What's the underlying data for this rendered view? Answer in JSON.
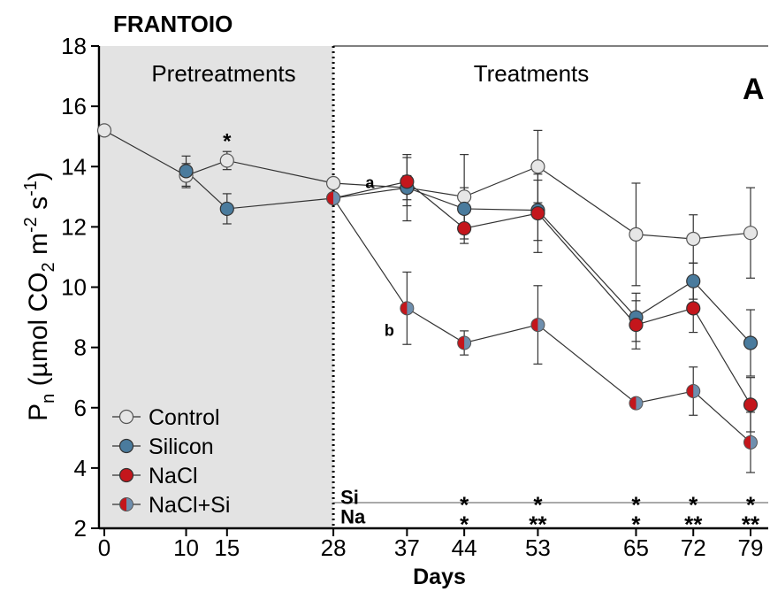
{
  "chart_data": {
    "type": "line",
    "title": "FRANTOIO",
    "panel_letter": "A",
    "xlabel": "Days",
    "ylabel": {
      "main": "P",
      "sub_n": "n",
      "units_prefix": " (µmol CO",
      "sub_2": "2",
      "units_mid": " m",
      "sup_m2": "-2",
      "units_s": " s",
      "sup_m1": "-1",
      "units_end": ")"
    },
    "x_ticks": [
      0,
      10,
      15,
      28,
      37,
      44,
      53,
      65,
      72,
      79
    ],
    "y_ticks": [
      2,
      4,
      6,
      8,
      10,
      12,
      14,
      16,
      18
    ],
    "xlim": [
      0,
      81
    ],
    "ylim": [
      2,
      18
    ],
    "grid": false,
    "legend_position": "bottom-left",
    "regions": {
      "pretreatment_label": "Pretreatments",
      "treatment_label": "Treatments",
      "boundary_day": 28
    },
    "colors": {
      "control": "#e6e6e6",
      "silicon": "#4a7b9d",
      "nacl": "#c4161c",
      "nacl_si_left": "#c4161c",
      "nacl_si_right": "#6f8fae",
      "shade": "#e3e3e3",
      "si_label": "#4a7b9d",
      "na_label": "#c4161c"
    },
    "series": [
      {
        "name": "Control",
        "key": "control",
        "x": [
          0,
          10,
          15,
          28,
          37,
          44,
          53,
          65,
          72,
          79
        ],
        "y": [
          15.2,
          13.7,
          14.2,
          13.45,
          13.3,
          13.0,
          14.0,
          11.75,
          11.6,
          11.8
        ],
        "err": [
          0,
          0.4,
          0.3,
          0,
          1.1,
          1.4,
          1.2,
          1.7,
          0.8,
          1.5
        ]
      },
      {
        "name": "Silicon",
        "key": "silicon",
        "x": [
          10,
          15,
          28,
          37,
          44,
          53,
          65,
          72,
          79
        ],
        "y": [
          13.85,
          12.6,
          12.95,
          13.3,
          12.6,
          12.55,
          9.0,
          10.2,
          8.15
        ],
        "err": [
          0.5,
          0.5,
          0,
          0.4,
          0.7,
          1.0,
          0.8,
          0.6,
          1.1
        ]
      },
      {
        "name": "NaCl",
        "key": "nacl",
        "x": [
          37,
          44,
          53,
          65,
          72,
          79
        ],
        "y": [
          13.5,
          11.95,
          12.45,
          8.75,
          9.3,
          6.1
        ],
        "err": [
          0.8,
          0.5,
          1.3,
          0.8,
          0.8,
          0.9
        ]
      },
      {
        "name": "NaCl+Si",
        "key": "nacl_si",
        "x": [
          28,
          37,
          44,
          53,
          65,
          72,
          79
        ],
        "y": [
          12.95,
          9.3,
          8.15,
          8.75,
          6.15,
          6.55,
          4.85
        ],
        "err": [
          0,
          1.2,
          0.4,
          1.3,
          0.1,
          0.8,
          1.0
        ]
      }
    ],
    "annotations": {
      "star_day15": "*",
      "label_a": "a",
      "label_b": "b"
    },
    "significance_rows": [
      {
        "label": "Si",
        "marks": [
          {
            "x": 44,
            "text": "*"
          },
          {
            "x": 53,
            "text": "*"
          },
          {
            "x": 65,
            "text": "*"
          },
          {
            "x": 72,
            "text": "*"
          },
          {
            "x": 79,
            "text": "*"
          }
        ]
      },
      {
        "label": "Na",
        "marks": [
          {
            "x": 44,
            "text": "*"
          },
          {
            "x": 53,
            "text": "**"
          },
          {
            "x": 65,
            "text": "*"
          },
          {
            "x": 72,
            "text": "**"
          },
          {
            "x": 79,
            "text": "**"
          }
        ]
      }
    ]
  }
}
